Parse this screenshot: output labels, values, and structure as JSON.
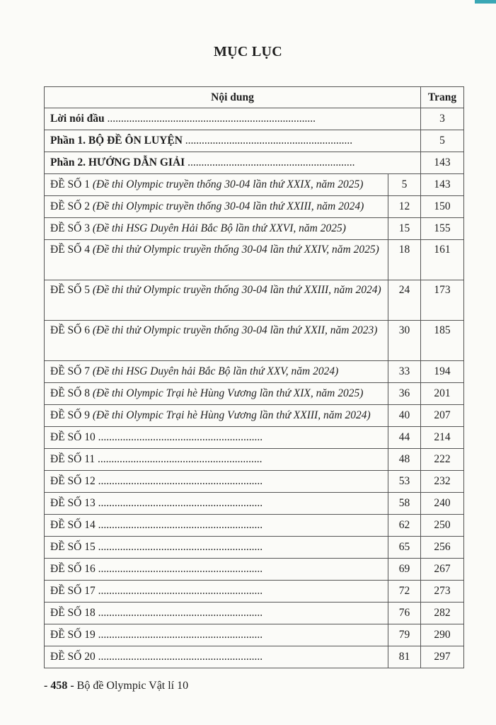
{
  "title": "MỤC LỤC",
  "header": {
    "content": "Nội dung",
    "page": "Trang"
  },
  "parts": [
    {
      "label": "Lời nói đầu",
      "dots": " ............................................................................",
      "page": "3"
    },
    {
      "label": "Phần 1. BỘ ĐỀ ÔN LUYỆN",
      "dots": " .............................................................",
      "page": "5"
    },
    {
      "label": "Phần 2. HƯỚNG DẪN GIẢI",
      "dots": " .............................................................",
      "page": "143"
    }
  ],
  "tests": [
    {
      "label": "ĐỀ SỐ 1",
      "source": "(Đề thi Olympic truyền thống 30-04 lần thứ XXIX, năm 2025)",
      "problem_page": "5",
      "solution_page": "143"
    },
    {
      "label": "ĐỀ SỐ 2",
      "source": "(Đề thi Olympic truyền thống 30-04 lần thứ XXIII, năm 2024)",
      "problem_page": "12",
      "solution_page": "150"
    },
    {
      "label": "ĐỀ SỐ 3",
      "source": "(Đề thi HSG Duyên Hải Bắc Bộ lần thứ XXVI, năm 2025)",
      "problem_page": "15",
      "solution_page": "155"
    },
    {
      "label": "ĐỀ SỐ 4",
      "source": "(Đề thi thử Olympic truyền thống 30-04 lần thứ XXIV, năm 2025)",
      "problem_page": "18",
      "solution_page": "161"
    },
    {
      "label": "ĐỀ SỐ 5",
      "source": "(Đề thi thử Olympic truyền thống 30-04 lần thứ XXIII, năm 2024)",
      "problem_page": "24",
      "solution_page": "173"
    },
    {
      "label": "ĐỀ SỐ 6",
      "source": "(Đề thi thử Olympic truyền thống 30-04 lần thứ XXII, năm 2023)",
      "problem_page": "30",
      "solution_page": "185"
    },
    {
      "label": "ĐỀ SỐ 7",
      "source": "(Đề thi HSG Duyên hải Bắc Bộ lần thứ XXV, năm 2024)",
      "problem_page": "33",
      "solution_page": "194"
    },
    {
      "label": "ĐỀ SỐ 8",
      "source": "(Đề thi Olympic Trại hè Hùng Vương lần thứ XIX, năm 2025)",
      "problem_page": "36",
      "solution_page": "201"
    },
    {
      "label": "ĐỀ SỐ 9",
      "source": "(Đề thi Olympic Trại hè Hùng Vương lần thứ XXIII, năm 2024)",
      "problem_page": "40",
      "solution_page": "207"
    },
    {
      "label": "ĐỀ SỐ 10",
      "source": " ............................................................",
      "problem_page": "44",
      "solution_page": "214"
    },
    {
      "label": "ĐỀ SỐ 11",
      "source": " ............................................................",
      "problem_page": "48",
      "solution_page": "222"
    },
    {
      "label": "ĐỀ SỐ 12",
      "source": " ............................................................",
      "problem_page": "53",
      "solution_page": "232"
    },
    {
      "label": "ĐỀ SỐ 13",
      "source": " ............................................................",
      "problem_page": "58",
      "solution_page": "240"
    },
    {
      "label": "ĐỀ SỐ 14",
      "source": " ............................................................",
      "problem_page": "62",
      "solution_page": "250"
    },
    {
      "label": "ĐỀ SỐ 15",
      "source": "............................................................",
      "problem_page": "65",
      "solution_page": "256"
    },
    {
      "label": "ĐỀ SỐ 16",
      "source": " ............................................................",
      "problem_page": "69",
      "solution_page": "267"
    },
    {
      "label": "ĐỀ SỐ 17",
      "source": " ............................................................",
      "problem_page": "72",
      "solution_page": "273"
    },
    {
      "label": "ĐỀ SỐ 18",
      "source": " ............................................................",
      "problem_page": "76",
      "solution_page": "282"
    },
    {
      "label": "ĐỀ SỐ 19",
      "source": " ............................................................",
      "problem_page": "79",
      "solution_page": "290"
    },
    {
      "label": "ĐỀ SỐ 20",
      "source": " ............................................................",
      "problem_page": "81",
      "solution_page": "297"
    }
  ],
  "footer": {
    "page_number": "- 458 -",
    "book_title": "Bộ đề Olympic Vật lí 10"
  },
  "colors": {
    "corner_accent": "#3aa7b5"
  }
}
